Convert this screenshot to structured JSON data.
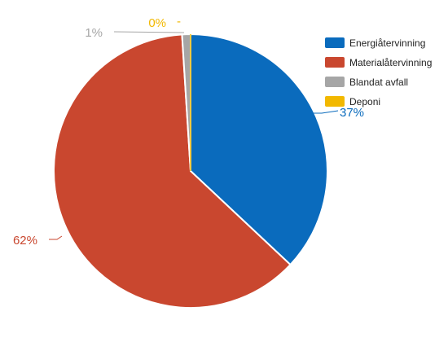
{
  "chart_data": {
    "type": "pie",
    "title": "",
    "series": [
      {
        "categories": [
          "Energiåtervinning",
          "Materialåtervinning",
          "Blandat avfall",
          "Deponi"
        ],
        "values": [
          37,
          62,
          1,
          0
        ],
        "value_labels": [
          "37%",
          "62%",
          "1%",
          "0%"
        ],
        "colors": [
          "#0a6bbd",
          "#c9472f",
          "#a6a6a6",
          "#f2b800"
        ]
      }
    ],
    "legend": {
      "position": "top-right",
      "entries": [
        "Energiåtervinning",
        "Materialåtervinning",
        "Blandat avfall",
        "Deponi"
      ]
    },
    "annotations": [
      "-"
    ]
  }
}
